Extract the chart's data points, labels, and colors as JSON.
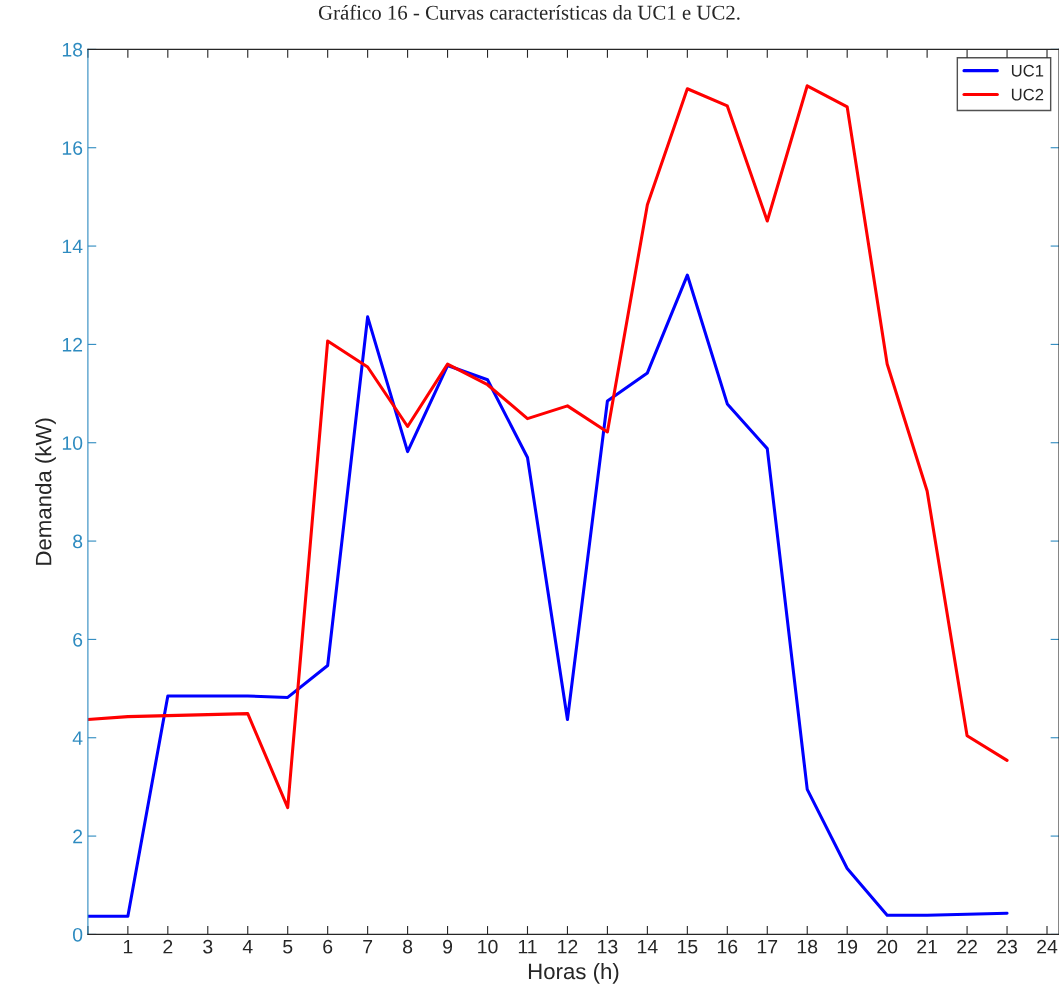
{
  "chart_data": {
    "type": "line",
    "title": "Gráfico 16 - Curvas características da UC1 e UC2.",
    "xlabel": "Horas (h)",
    "ylabel": "Demanda (kW)",
    "x": [
      0,
      1,
      2,
      3,
      4,
      5,
      6,
      7,
      8,
      9,
      10,
      11,
      12,
      13,
      14,
      15,
      16,
      17,
      18,
      19,
      20,
      21,
      22,
      23
    ],
    "series": [
      {
        "name": "UC1",
        "color": "#0000ff",
        "values": [
          0.37,
          0.37,
          4.85,
          4.85,
          4.85,
          4.82,
          5.47,
          12.56,
          9.82,
          11.57,
          11.28,
          9.7,
          4.37,
          10.85,
          11.42,
          13.41,
          10.79,
          9.88,
          2.95,
          1.34,
          0.39,
          0.39,
          0.41,
          0.43
        ]
      },
      {
        "name": "UC2",
        "color": "#ff0000",
        "values": [
          4.37,
          4.43,
          4.45,
          4.47,
          4.49,
          2.58,
          12.07,
          11.54,
          10.33,
          11.6,
          11.18,
          10.49,
          10.75,
          10.22,
          14.84,
          17.2,
          16.85,
          14.51,
          17.26,
          16.83,
          11.6,
          9.02,
          4.04,
          3.54
        ]
      }
    ],
    "xlim": [
      0,
      24.3
    ],
    "xticks": [
      {
        "value": 0,
        "label": null
      },
      1,
      2,
      3,
      4,
      5,
      6,
      7,
      8,
      9,
      10,
      11,
      12,
      13,
      14,
      15,
      16,
      17,
      18,
      19,
      20,
      21,
      22,
      23,
      24
    ],
    "ylim": [
      0,
      18
    ],
    "yticks": [
      0,
      2,
      4,
      6,
      8,
      10,
      12,
      14,
      16,
      18
    ],
    "grid": false,
    "legend": "top right",
    "line_style": "solid",
    "marker": "none"
  }
}
